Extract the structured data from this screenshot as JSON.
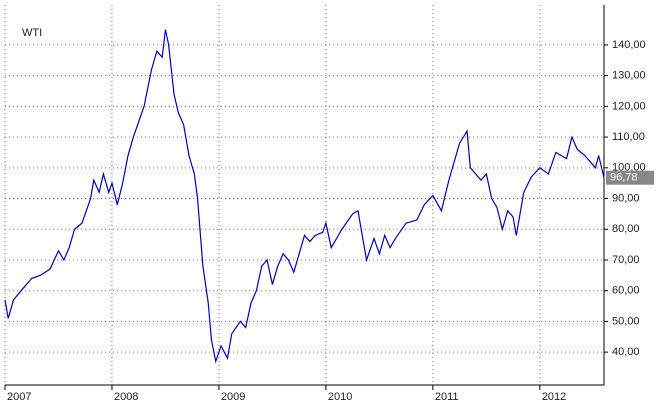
{
  "chart_data": {
    "type": "line",
    "x": [
      2007.0,
      2007.03,
      2007.08,
      2007.15,
      2007.25,
      2007.33,
      2007.42,
      2007.5,
      2007.55,
      2007.6,
      2007.65,
      2007.72,
      2007.8,
      2007.83,
      2007.88,
      2007.92,
      2007.97,
      2008.0,
      2008.05,
      2008.1,
      2008.15,
      2008.2,
      2008.3,
      2008.37,
      2008.42,
      2008.47,
      2008.5,
      2008.53,
      2008.58,
      2008.62,
      2008.67,
      2008.72,
      2008.77,
      2008.8,
      2008.85,
      2008.9,
      2008.93,
      2008.97,
      2009.02,
      2009.08,
      2009.12,
      2009.2,
      2009.25,
      2009.3,
      2009.35,
      2009.4,
      2009.45,
      2009.5,
      2009.55,
      2009.6,
      2009.65,
      2009.7,
      2009.8,
      2009.85,
      2009.9,
      2009.97,
      2010.0,
      2010.05,
      2010.15,
      2010.25,
      2010.3,
      2010.38,
      2010.45,
      2010.5,
      2010.55,
      2010.6,
      2010.65,
      2010.75,
      2010.85,
      2010.92,
      2011.0,
      2011.08,
      2011.15,
      2011.25,
      2011.32,
      2011.35,
      2011.45,
      2011.5,
      2011.55,
      2011.6,
      2011.65,
      2011.7,
      2011.75,
      2011.78,
      2011.85,
      2011.92,
      2012.0,
      2012.08,
      2012.15,
      2012.25,
      2012.3,
      2012.35,
      2012.42,
      2012.47,
      2012.52,
      2012.55,
      2012.6
    ],
    "series": [
      {
        "name": "WTI",
        "color": "#0000cc",
        "values": [
          57,
          51,
          57,
          60,
          64,
          65,
          67,
          73,
          70,
          74,
          80,
          82,
          90,
          96,
          92,
          98,
          92,
          95,
          88,
          95,
          104,
          110,
          120,
          132,
          138,
          136,
          145,
          140,
          124,
          118,
          114,
          104,
          98,
          90,
          68,
          56,
          44,
          37,
          42,
          38,
          46,
          50,
          48,
          56,
          60,
          68,
          70,
          62,
          68,
          72,
          70,
          66,
          78,
          76,
          78,
          79,
          82,
          74,
          80,
          85,
          86,
          70,
          77,
          72,
          78,
          74,
          77,
          82,
          83,
          88,
          91,
          86,
          96,
          108,
          112,
          100,
          96,
          98,
          90,
          87,
          80,
          86,
          84,
          78,
          92,
          97,
          100,
          98,
          105,
          103,
          110,
          106,
          104,
          102,
          100,
          104,
          96.78
        ]
      }
    ],
    "current_value": {
      "value": 96.78,
      "label": "96,78"
    },
    "xlim": [
      2007,
      2012.6
    ],
    "xticks": [
      2007,
      2008,
      2009,
      2010,
      2011,
      2012
    ],
    "ylim": [
      29.3,
      153
    ],
    "yticks": [
      {
        "value": 40,
        "label": "40,00"
      },
      {
        "value": 50,
        "label": "50,00"
      },
      {
        "value": 60,
        "label": "60,00"
      },
      {
        "value": 70,
        "label": "70,00"
      },
      {
        "value": 80,
        "label": "80,00"
      },
      {
        "value": 90,
        "label": "90,00"
      },
      {
        "value": 100,
        "label": "100,00"
      },
      {
        "value": 110,
        "label": "110,00"
      },
      {
        "value": 120,
        "label": "120,00"
      },
      {
        "value": 130,
        "label": "130,00"
      },
      {
        "value": 140,
        "label": "140,00"
      }
    ],
    "grid": true
  }
}
